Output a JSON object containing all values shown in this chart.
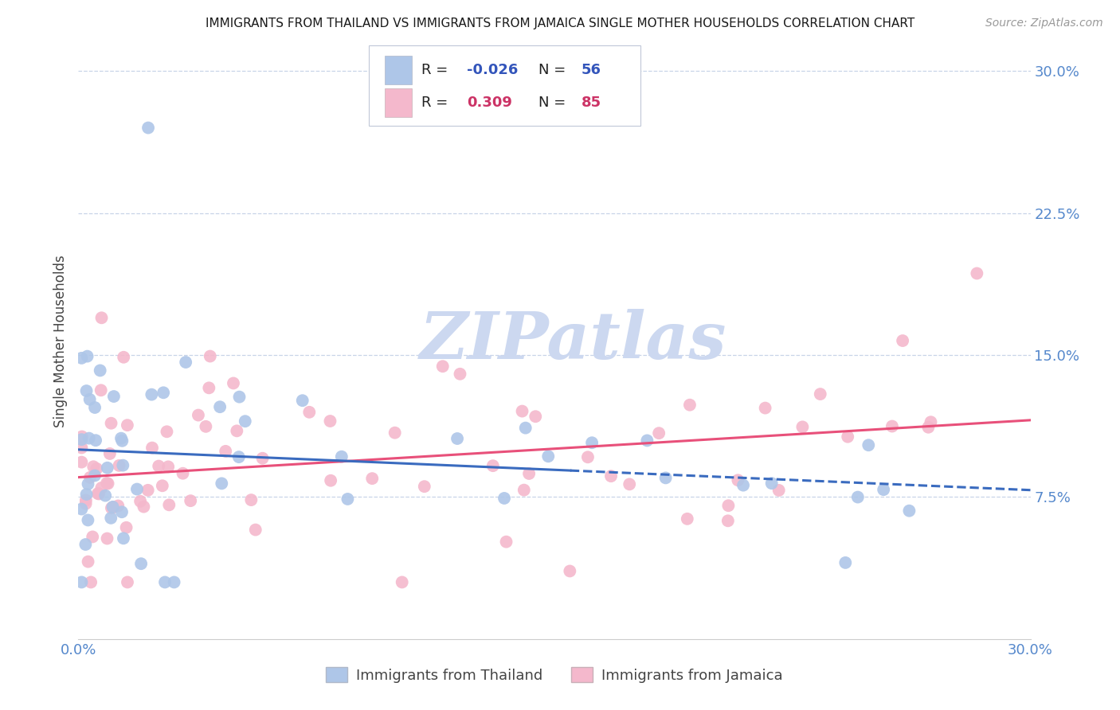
{
  "title": "IMMIGRANTS FROM THAILAND VS IMMIGRANTS FROM JAMAICA SINGLE MOTHER HOUSEHOLDS CORRELATION CHART",
  "source": "Source: ZipAtlas.com",
  "ylabel": "Single Mother Households",
  "xlim": [
    0.0,
    0.3
  ],
  "ylim": [
    0.0,
    0.315
  ],
  "yticks": [
    0.075,
    0.15,
    0.225,
    0.3
  ],
  "ytick_labels": [
    "7.5%",
    "15.0%",
    "22.5%",
    "30.0%"
  ],
  "xticks": [
    0.0,
    0.05,
    0.1,
    0.15,
    0.2,
    0.25,
    0.3
  ],
  "thailand_color": "#aec6e8",
  "jamaica_color": "#f4b8cc",
  "thailand_line_color": "#3a6bbf",
  "jamaica_line_color": "#e8507a",
  "thailand_R": -0.026,
  "thailand_N": 56,
  "jamaica_R": 0.309,
  "jamaica_N": 85,
  "background_color": "#ffffff",
  "grid_color": "#c8d4e8",
  "watermark": "ZIPatlas",
  "watermark_color": "#ccd8f0",
  "tick_label_color": "#5588cc",
  "legend_R_color": "#3355bb",
  "legend_N_color": "#3355bb",
  "legend_jamaica_R_color": "#cc3366",
  "legend_jamaica_N_color": "#cc3366"
}
